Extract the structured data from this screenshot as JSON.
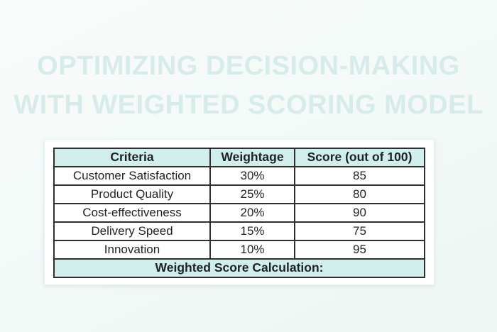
{
  "title": {
    "line1": "OPTIMIZING DECISION-MAKING",
    "line2": "WITH WEIGHTED SCORING MODEL"
  },
  "table": {
    "columns": [
      "Criteria",
      "Weightage",
      "Score (out of 100)"
    ],
    "rows": [
      [
        "Customer Satisfaction",
        "30%",
        "85"
      ],
      [
        "Product Quality",
        "25%",
        "80"
      ],
      [
        "Cost-effectiveness",
        "20%",
        "90"
      ],
      [
        "Delivery Speed",
        "15%",
        "75"
      ],
      [
        "Innovation",
        "10%",
        "95"
      ]
    ],
    "footer_label": "Weighted Score Calculation:"
  },
  "colors": {
    "page_background": "#f2f9f7",
    "title_text": "#d7ecea",
    "header_row_background": "#cfeeec",
    "table_border": "#2f2f2f",
    "cell_text": "#1e2223",
    "card_background": "#ffffff"
  }
}
